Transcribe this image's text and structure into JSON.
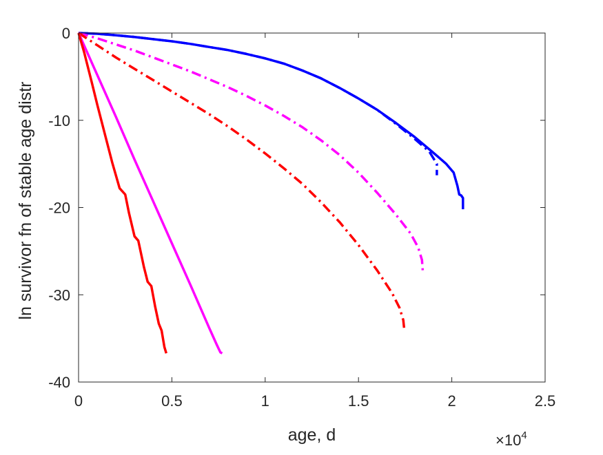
{
  "chart_data": {
    "type": "line",
    "title": "",
    "xlabel": "age, d",
    "ylabel": "ln survivor fn of stable age distr",
    "x_multiplier_label": {
      "base": "×10",
      "exponent": "4"
    },
    "xlim": [
      0,
      25000
    ],
    "ylim": [
      -40,
      0
    ],
    "xticks": [
      0,
      5000,
      10000,
      15000,
      20000,
      25000
    ],
    "xtick_labels": [
      "0",
      "0.5",
      "1",
      "1.5",
      "2",
      "2.5"
    ],
    "yticks": [
      0,
      -10,
      -20,
      -30,
      -40
    ],
    "ytick_labels": [
      "0",
      "-10",
      "-20",
      "-30",
      "-40"
    ],
    "grid": false,
    "legend": "none",
    "series": [
      {
        "color": "#0000ff",
        "style": "solid",
        "points": [
          [
            0,
            0
          ],
          [
            1000,
            -0.08
          ],
          [
            2000,
            -0.25
          ],
          [
            3000,
            -0.45
          ],
          [
            4000,
            -0.7
          ],
          [
            5000,
            -0.95
          ],
          [
            6000,
            -1.25
          ],
          [
            7000,
            -1.6
          ],
          [
            8000,
            -1.95
          ],
          [
            9000,
            -2.4
          ],
          [
            10000,
            -2.9
          ],
          [
            11000,
            -3.5
          ],
          [
            12000,
            -4.3
          ],
          [
            13000,
            -5.2
          ],
          [
            14000,
            -6.3
          ],
          [
            15000,
            -7.5
          ],
          [
            16000,
            -8.8
          ],
          [
            17000,
            -10.3
          ],
          [
            18000,
            -11.9
          ],
          [
            19000,
            -13.7
          ],
          [
            19700,
            -15.0
          ],
          [
            20100,
            -16.0
          ],
          [
            20300,
            -17.5
          ],
          [
            20400,
            -18.5
          ],
          [
            20500,
            -18.6
          ],
          [
            20600,
            -18.9
          ],
          [
            20600,
            -20.2
          ]
        ]
      },
      {
        "color": "#0000ff",
        "style": "dashdot",
        "points": [
          [
            0,
            0
          ],
          [
            1000,
            -0.08
          ],
          [
            2000,
            -0.25
          ],
          [
            3000,
            -0.45
          ],
          [
            4000,
            -0.7
          ],
          [
            5000,
            -0.95
          ],
          [
            6000,
            -1.25
          ],
          [
            7000,
            -1.6
          ],
          [
            8000,
            -1.95
          ],
          [
            9000,
            -2.4
          ],
          [
            10000,
            -2.9
          ],
          [
            11000,
            -3.5
          ],
          [
            12000,
            -4.3
          ],
          [
            13000,
            -5.2
          ],
          [
            14000,
            -6.3
          ],
          [
            15000,
            -7.5
          ],
          [
            16000,
            -8.8
          ],
          [
            17000,
            -10.4
          ],
          [
            18000,
            -12.1
          ],
          [
            18800,
            -13.6
          ],
          [
            19200,
            -15.0
          ],
          [
            19200,
            -16.3
          ]
        ]
      },
      {
        "color": "#ff00ff",
        "style": "dashdot",
        "points": [
          [
            0,
            0
          ],
          [
            1000,
            -0.6
          ],
          [
            2000,
            -1.3
          ],
          [
            3000,
            -2.0
          ],
          [
            4000,
            -2.8
          ],
          [
            5000,
            -3.6
          ],
          [
            6000,
            -4.4
          ],
          [
            7000,
            -5.3
          ],
          [
            8000,
            -6.2
          ],
          [
            9000,
            -7.2
          ],
          [
            10000,
            -8.3
          ],
          [
            11000,
            -9.5
          ],
          [
            12000,
            -10.8
          ],
          [
            13000,
            -12.3
          ],
          [
            14000,
            -14.0
          ],
          [
            15000,
            -16.0
          ],
          [
            16000,
            -18.3
          ],
          [
            17000,
            -20.8
          ],
          [
            17800,
            -23.0
          ],
          [
            18200,
            -24.6
          ],
          [
            18400,
            -26.0
          ],
          [
            18450,
            -27.4
          ]
        ]
      },
      {
        "color": "#ff0000",
        "style": "dashdot",
        "points": [
          [
            0,
            0
          ],
          [
            1000,
            -1.4
          ],
          [
            2000,
            -2.8
          ],
          [
            3000,
            -4.1
          ],
          [
            4000,
            -5.4
          ],
          [
            5000,
            -6.7
          ],
          [
            6000,
            -8.0
          ],
          [
            7000,
            -9.3
          ],
          [
            8000,
            -10.7
          ],
          [
            9000,
            -12.2
          ],
          [
            10000,
            -13.8
          ],
          [
            11000,
            -15.5
          ],
          [
            12000,
            -17.3
          ],
          [
            13000,
            -19.4
          ],
          [
            14000,
            -21.7
          ],
          [
            15000,
            -24.3
          ],
          [
            16000,
            -27.2
          ],
          [
            16800,
            -29.8
          ],
          [
            17200,
            -31.5
          ],
          [
            17400,
            -32.9
          ],
          [
            17450,
            -33.9
          ]
        ]
      },
      {
        "color": "#ff00ff",
        "style": "solid",
        "points": [
          [
            0,
            0
          ],
          [
            1000,
            -4.8
          ],
          [
            2000,
            -9.6
          ],
          [
            3000,
            -14.5
          ],
          [
            4000,
            -19.3
          ],
          [
            5000,
            -24.1
          ],
          [
            6000,
            -28.9
          ],
          [
            7000,
            -33.8
          ],
          [
            7400,
            -35.7
          ],
          [
            7600,
            -36.6
          ],
          [
            7700,
            -36.7
          ]
        ]
      },
      {
        "color": "#ff0000",
        "style": "solid",
        "points": [
          [
            0,
            0
          ],
          [
            300,
            -2.2
          ],
          [
            700,
            -5.6
          ],
          [
            1000,
            -8.2
          ],
          [
            1400,
            -11.5
          ],
          [
            1800,
            -14.8
          ],
          [
            2200,
            -17.8
          ],
          [
            2500,
            -18.5
          ],
          [
            2700,
            -20.6
          ],
          [
            3000,
            -23.3
          ],
          [
            3200,
            -23.8
          ],
          [
            3500,
            -26.8
          ],
          [
            3700,
            -28.5
          ],
          [
            3900,
            -29.0
          ],
          [
            4100,
            -31.3
          ],
          [
            4300,
            -33.3
          ],
          [
            4450,
            -34.1
          ],
          [
            4600,
            -36.0
          ],
          [
            4700,
            -36.7
          ]
        ]
      }
    ]
  }
}
